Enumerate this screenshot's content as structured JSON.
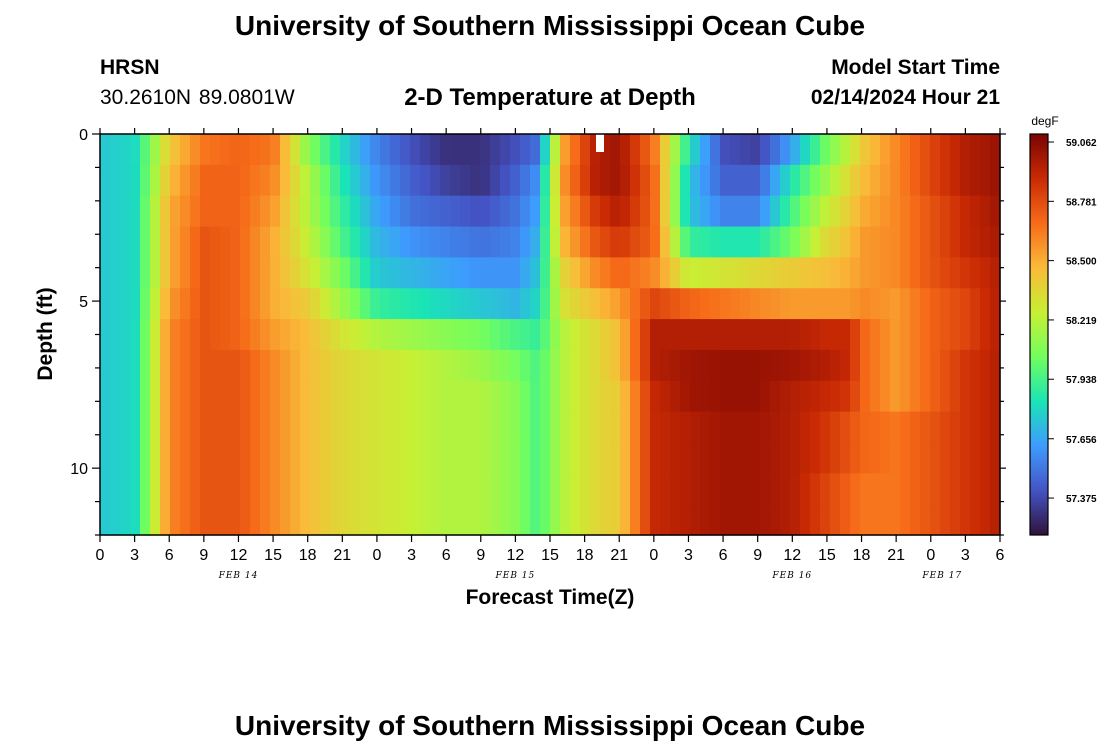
{
  "header": {
    "title": "University of Southern Mississippi Ocean Cube",
    "station": "HRSN",
    "coords": "30.2610N  89.0801W",
    "subtitle": "2-D Temperature at Depth",
    "model_start_label": "Model Start Time",
    "model_start_value": "02/14/2024 Hour 21"
  },
  "footer": {
    "title": "University of Southern Mississippi Ocean Cube"
  },
  "chart_data": {
    "type": "heatmap",
    "title": "2-D Temperature at Depth",
    "xlabel": "Forecast Time(Z)",
    "ylabel": "Depth (ft)",
    "x_units": "hours (Z)",
    "x_range_hours_from_feb14_00z": [
      0,
      78
    ],
    "y_range_ft": [
      0,
      12
    ],
    "x_tick_labels": [
      "0",
      "3",
      "6",
      "9",
      "12",
      "15",
      "18",
      "21",
      "0",
      "3",
      "6",
      "9",
      "12",
      "15",
      "18",
      "21",
      "0",
      "3",
      "6",
      "9",
      "12",
      "15",
      "18",
      "21",
      "0",
      "3",
      "6"
    ],
    "y_ticks": [
      0,
      5,
      10
    ],
    "day_labels": [
      "FEB 14",
      "FEB 15",
      "FEB 16",
      "FEB 17"
    ],
    "colorbar": {
      "unit": "degF",
      "min": 57.2,
      "max": 59.1,
      "tick_labels": [
        "59.062",
        "58.781",
        "58.500",
        "58.219",
        "57.938",
        "57.656",
        "57.375"
      ],
      "colors": [
        "#30123b",
        "#4454c4",
        "#3e9bfe",
        "#1ae4b6",
        "#72fe5e",
        "#c8ef34",
        "#faba39",
        "#f66b19",
        "#ca2a04",
        "#7a0403"
      ]
    },
    "depth_levels_ft": [
      0,
      1,
      2,
      3,
      4,
      5,
      6,
      7,
      8,
      9,
      10,
      11,
      12
    ],
    "time_keypoints_hours": [
      0,
      3,
      6,
      9,
      12,
      15,
      18,
      21,
      24,
      27,
      30,
      33,
      36,
      38,
      40,
      43,
      45,
      48,
      51,
      54,
      57,
      60,
      63,
      65,
      66,
      69,
      72,
      75,
      78
    ],
    "temperature_degF": [
      [
        57.75,
        57.75,
        57.75,
        57.75,
        57.75,
        57.75,
        57.75,
        57.75,
        57.75,
        57.75,
        57.75,
        57.75,
        57.75
      ],
      [
        57.8,
        57.8,
        57.8,
        57.8,
        57.8,
        57.8,
        57.8,
        57.8,
        57.8,
        57.8,
        57.8,
        57.8,
        57.8
      ],
      [
        58.4,
        58.45,
        58.5,
        58.5,
        58.5,
        58.55,
        58.6,
        58.6,
        58.6,
        58.6,
        58.6,
        58.6,
        58.6
      ],
      [
        58.65,
        58.7,
        58.7,
        58.75,
        58.75,
        58.75,
        58.75,
        58.75,
        58.75,
        58.75,
        58.75,
        58.75,
        58.75
      ],
      [
        58.7,
        58.7,
        58.7,
        58.7,
        58.7,
        58.7,
        58.7,
        58.75,
        58.75,
        58.75,
        58.75,
        58.75,
        58.75
      ],
      [
        58.65,
        58.6,
        58.55,
        58.5,
        58.5,
        58.5,
        58.55,
        58.6,
        58.6,
        58.6,
        58.6,
        58.6,
        58.6
      ],
      [
        58.1,
        58.2,
        58.2,
        58.25,
        58.3,
        58.4,
        58.45,
        58.45,
        58.45,
        58.45,
        58.45,
        58.45,
        58.45
      ],
      [
        57.8,
        57.85,
        57.9,
        57.95,
        58.05,
        58.15,
        58.3,
        58.35,
        58.35,
        58.35,
        58.35,
        58.35,
        58.35
      ],
      [
        57.55,
        57.6,
        57.65,
        57.7,
        57.75,
        57.9,
        58.2,
        58.3,
        58.3,
        58.3,
        58.3,
        58.3,
        58.3
      ],
      [
        57.4,
        57.45,
        57.5,
        57.6,
        57.7,
        57.85,
        58.15,
        58.25,
        58.25,
        58.25,
        58.25,
        58.25,
        58.25
      ],
      [
        57.3,
        57.35,
        57.45,
        57.55,
        57.65,
        57.8,
        58.1,
        58.2,
        58.2,
        58.2,
        58.2,
        58.2,
        58.2
      ],
      [
        57.3,
        57.3,
        57.4,
        57.5,
        57.6,
        57.75,
        58.05,
        58.15,
        58.2,
        58.2,
        58.2,
        58.2,
        58.2
      ],
      [
        57.4,
        57.45,
        57.5,
        57.55,
        57.6,
        57.7,
        57.95,
        58.05,
        58.1,
        58.1,
        58.1,
        58.1,
        58.1
      ],
      [
        57.5,
        57.6,
        57.65,
        57.7,
        57.75,
        57.8,
        57.9,
        57.95,
        57.95,
        57.95,
        57.95,
        57.95,
        57.95
      ],
      [
        58.5,
        58.55,
        58.5,
        58.45,
        58.35,
        58.3,
        58.2,
        58.2,
        58.2,
        58.2,
        58.2,
        58.2,
        58.2
      ],
      [
        58.95,
        58.95,
        58.85,
        58.75,
        58.6,
        58.45,
        58.35,
        58.35,
        58.35,
        58.35,
        58.35,
        58.35,
        58.35
      ],
      [
        59.0,
        59.0,
        58.95,
        58.85,
        58.7,
        58.55,
        58.45,
        58.45,
        58.4,
        58.4,
        58.4,
        58.4,
        58.4
      ],
      [
        58.65,
        58.7,
        58.7,
        58.7,
        58.6,
        58.8,
        58.95,
        58.95,
        58.9,
        58.9,
        58.9,
        58.9,
        58.9
      ],
      [
        57.85,
        57.75,
        57.75,
        57.9,
        58.25,
        58.7,
        58.95,
        59.0,
        59.0,
        58.95,
        58.95,
        58.95,
        58.95
      ],
      [
        57.4,
        57.45,
        57.55,
        57.85,
        58.3,
        58.65,
        58.95,
        59.02,
        59.02,
        59.0,
        59.0,
        59.0,
        59.0
      ],
      [
        57.35,
        57.45,
        57.55,
        57.85,
        58.35,
        58.6,
        58.95,
        59.02,
        59.02,
        59.0,
        59.0,
        59.0,
        59.0
      ],
      [
        57.65,
        57.85,
        57.95,
        58.05,
        58.4,
        58.55,
        58.95,
        59.0,
        58.95,
        58.95,
        58.95,
        58.95,
        58.95
      ],
      [
        58.05,
        58.15,
        58.25,
        58.35,
        58.45,
        58.55,
        58.9,
        58.95,
        58.9,
        58.85,
        58.85,
        58.8,
        58.8
      ],
      [
        58.25,
        58.35,
        58.4,
        58.45,
        58.5,
        58.55,
        58.9,
        58.9,
        58.85,
        58.75,
        58.75,
        58.7,
        58.7
      ],
      [
        58.4,
        58.45,
        58.5,
        58.55,
        58.55,
        58.6,
        58.7,
        58.7,
        58.7,
        58.7,
        58.7,
        58.65,
        58.65
      ],
      [
        58.6,
        58.6,
        58.6,
        58.6,
        58.6,
        58.55,
        58.55,
        58.55,
        58.55,
        58.65,
        58.65,
        58.65,
        58.65
      ],
      [
        58.8,
        58.8,
        58.75,
        58.75,
        58.75,
        58.7,
        58.7,
        58.7,
        58.7,
        58.75,
        58.75,
        58.75,
        58.75
      ],
      [
        58.95,
        58.95,
        58.9,
        58.9,
        58.85,
        58.8,
        58.8,
        58.85,
        58.85,
        58.85,
        58.85,
        58.85,
        58.85
      ],
      [
        59.02,
        59.02,
        59.0,
        58.98,
        58.95,
        58.95,
        58.95,
        58.95,
        58.95,
        58.95,
        58.95,
        58.95,
        58.95
      ]
    ]
  }
}
